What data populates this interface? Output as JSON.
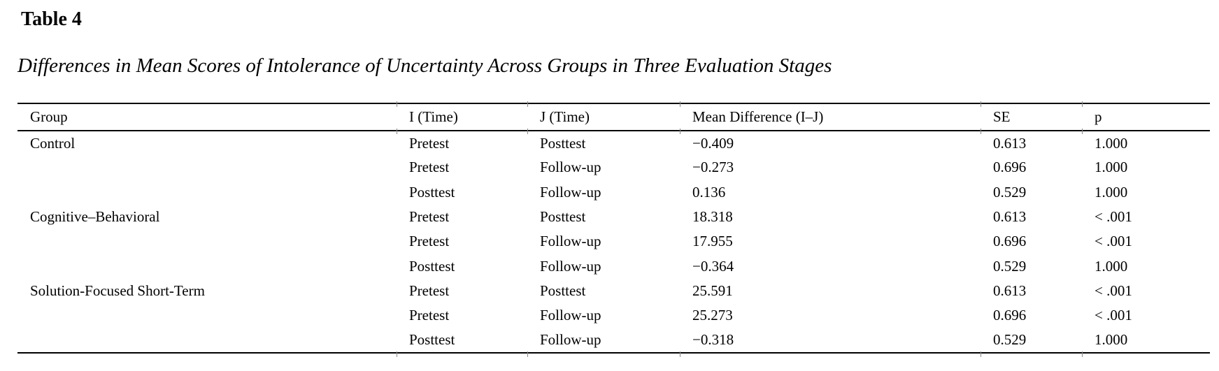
{
  "document": {
    "label": "Table 4",
    "caption": "Differences in Mean Scores of Intolerance of Uncertainty Across Groups in Three Evaluation Stages"
  },
  "table": {
    "columns": [
      "Group",
      "I (Time)",
      "J (Time)",
      "Mean Difference (I–J)",
      "SE",
      "p"
    ],
    "rows": [
      [
        "Control",
        "Pretest",
        "Posttest",
        "−0.409",
        "0.613",
        "1.000"
      ],
      [
        "",
        "Pretest",
        "Follow-up",
        "−0.273",
        "0.696",
        "1.000"
      ],
      [
        "",
        "Posttest",
        "Follow-up",
        "0.136",
        "0.529",
        "1.000"
      ],
      [
        "Cognitive–Behavioral",
        "Pretest",
        "Posttest",
        "18.318",
        "0.613",
        "< .001"
      ],
      [
        "",
        "Pretest",
        "Follow-up",
        "17.955",
        "0.696",
        "< .001"
      ],
      [
        "",
        "Posttest",
        "Follow-up",
        "−0.364",
        "0.529",
        "1.000"
      ],
      [
        "Solution-Focused Short-Term",
        "Pretest",
        "Posttest",
        "25.591",
        "0.613",
        "< .001"
      ],
      [
        "",
        "Pretest",
        "Follow-up",
        "25.273",
        "0.696",
        "< .001"
      ],
      [
        "",
        "Posttest",
        "Follow-up",
        "−0.318",
        "0.529",
        "1.000"
      ]
    ]
  },
  "colors": {
    "text": "#000000",
    "rule": "#000000",
    "background": "#ffffff"
  }
}
